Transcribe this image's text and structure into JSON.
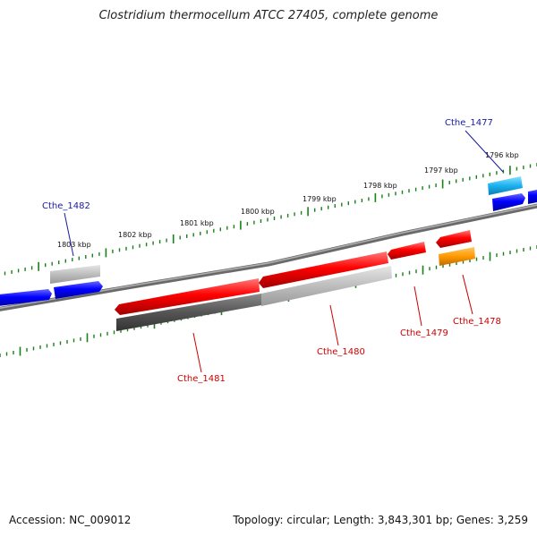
{
  "map": {
    "title": "Clostridium thermocellum ATCC 27405, complete genome",
    "accession": "Accession: NC_009012",
    "summary": "Topology: circular; Length: 3,843,301 bp; Genes: 3,259"
  },
  "ruler": {
    "labels": [
      "1803 kbp",
      "1802 kbp",
      "1801 kbp",
      "1800 kbp",
      "1799 kbp",
      "1798 kbp",
      "1797 kbp",
      "1796 kbp"
    ]
  },
  "genes": [
    {
      "id": "Cthe_1482",
      "color": "#0000cc"
    },
    {
      "id": "Cthe_1481",
      "color": "#cc0000"
    },
    {
      "id": "Cthe_1480",
      "color": "#cc0000"
    },
    {
      "id": "Cthe_1479",
      "color": "#cc0000"
    },
    {
      "id": "Cthe_1478",
      "color": "#cc0000"
    },
    {
      "id": "Cthe_1477",
      "color": "#0000cc"
    }
  ],
  "colors": {
    "forward_cds": "#0000ff",
    "reverse_cds": "#ff0000",
    "rna": "#1ab2f0",
    "orange_feature": "#ff9900",
    "backbone": "#808080",
    "ticks": "#1a801a"
  }
}
